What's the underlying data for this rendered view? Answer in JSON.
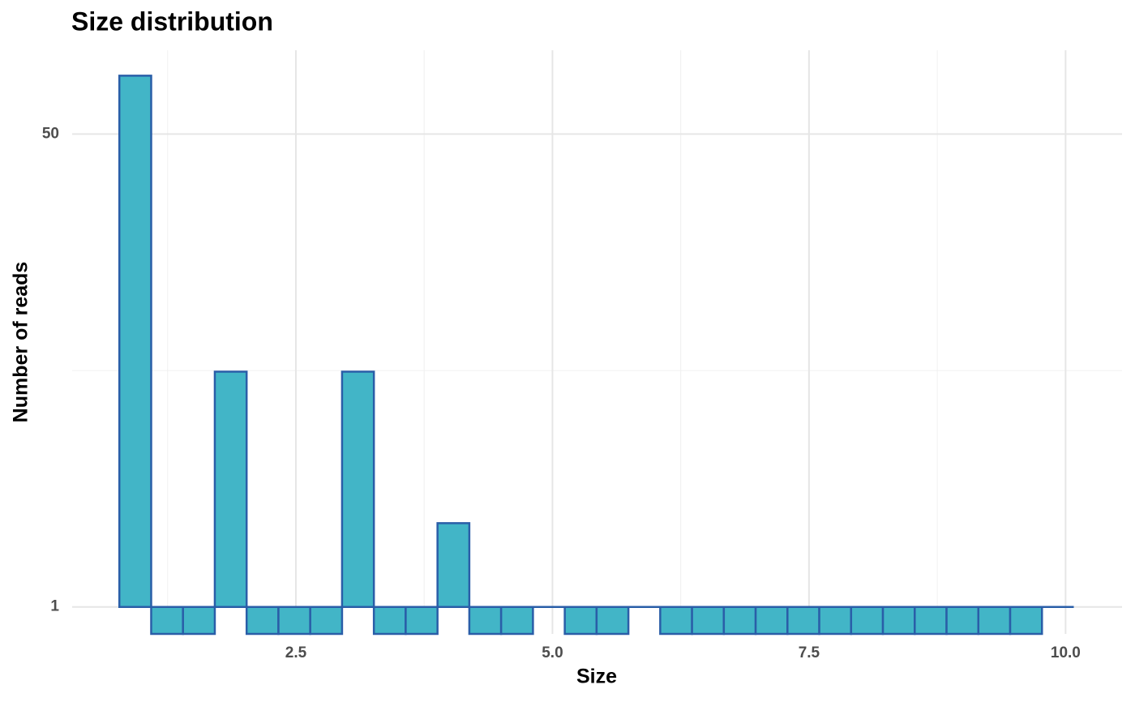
{
  "chart_data": {
    "type": "histogram",
    "title": "Size distribution",
    "x_label": "Size",
    "y_label": "Number of reads",
    "bins": [
      0.78,
      1.09,
      1.4,
      1.71,
      2.02,
      2.33,
      2.64,
      2.95,
      3.26,
      3.57,
      3.88,
      4.19,
      4.5,
      4.81,
      5.12,
      5.43,
      5.74,
      6.05,
      6.36,
      6.67,
      6.98,
      7.29,
      7.6,
      7.91,
      8.22,
      8.53,
      8.84,
      9.15,
      9.46,
      9.77,
      10.08
    ],
    "values": [
      81,
      0,
      0,
      7,
      0,
      0,
      0,
      7,
      0,
      0,
      2,
      0,
      0,
      1,
      0,
      0,
      1,
      0,
      0,
      0,
      0,
      0,
      0,
      0,
      0,
      0,
      0,
      0,
      0,
      1
    ],
    "color": "#42b5c7",
    "edge_color": "#2a5ea8",
    "xlim": [
      0.32,
      10.55
    ],
    "ylim": [
      0.8,
      100
    ],
    "log_y": true,
    "grid": true,
    "xticks": [
      2.5,
      {
        "value": 5,
        "label": "5.0"
      },
      7.5,
      {
        "value": 10,
        "label": "10.0"
      }
    ],
    "xminor": [
      1.25,
      3.75,
      6.25,
      8.75
    ],
    "yticks": [
      1,
      50
    ],
    "yminor": [
      7.07
    ]
  }
}
